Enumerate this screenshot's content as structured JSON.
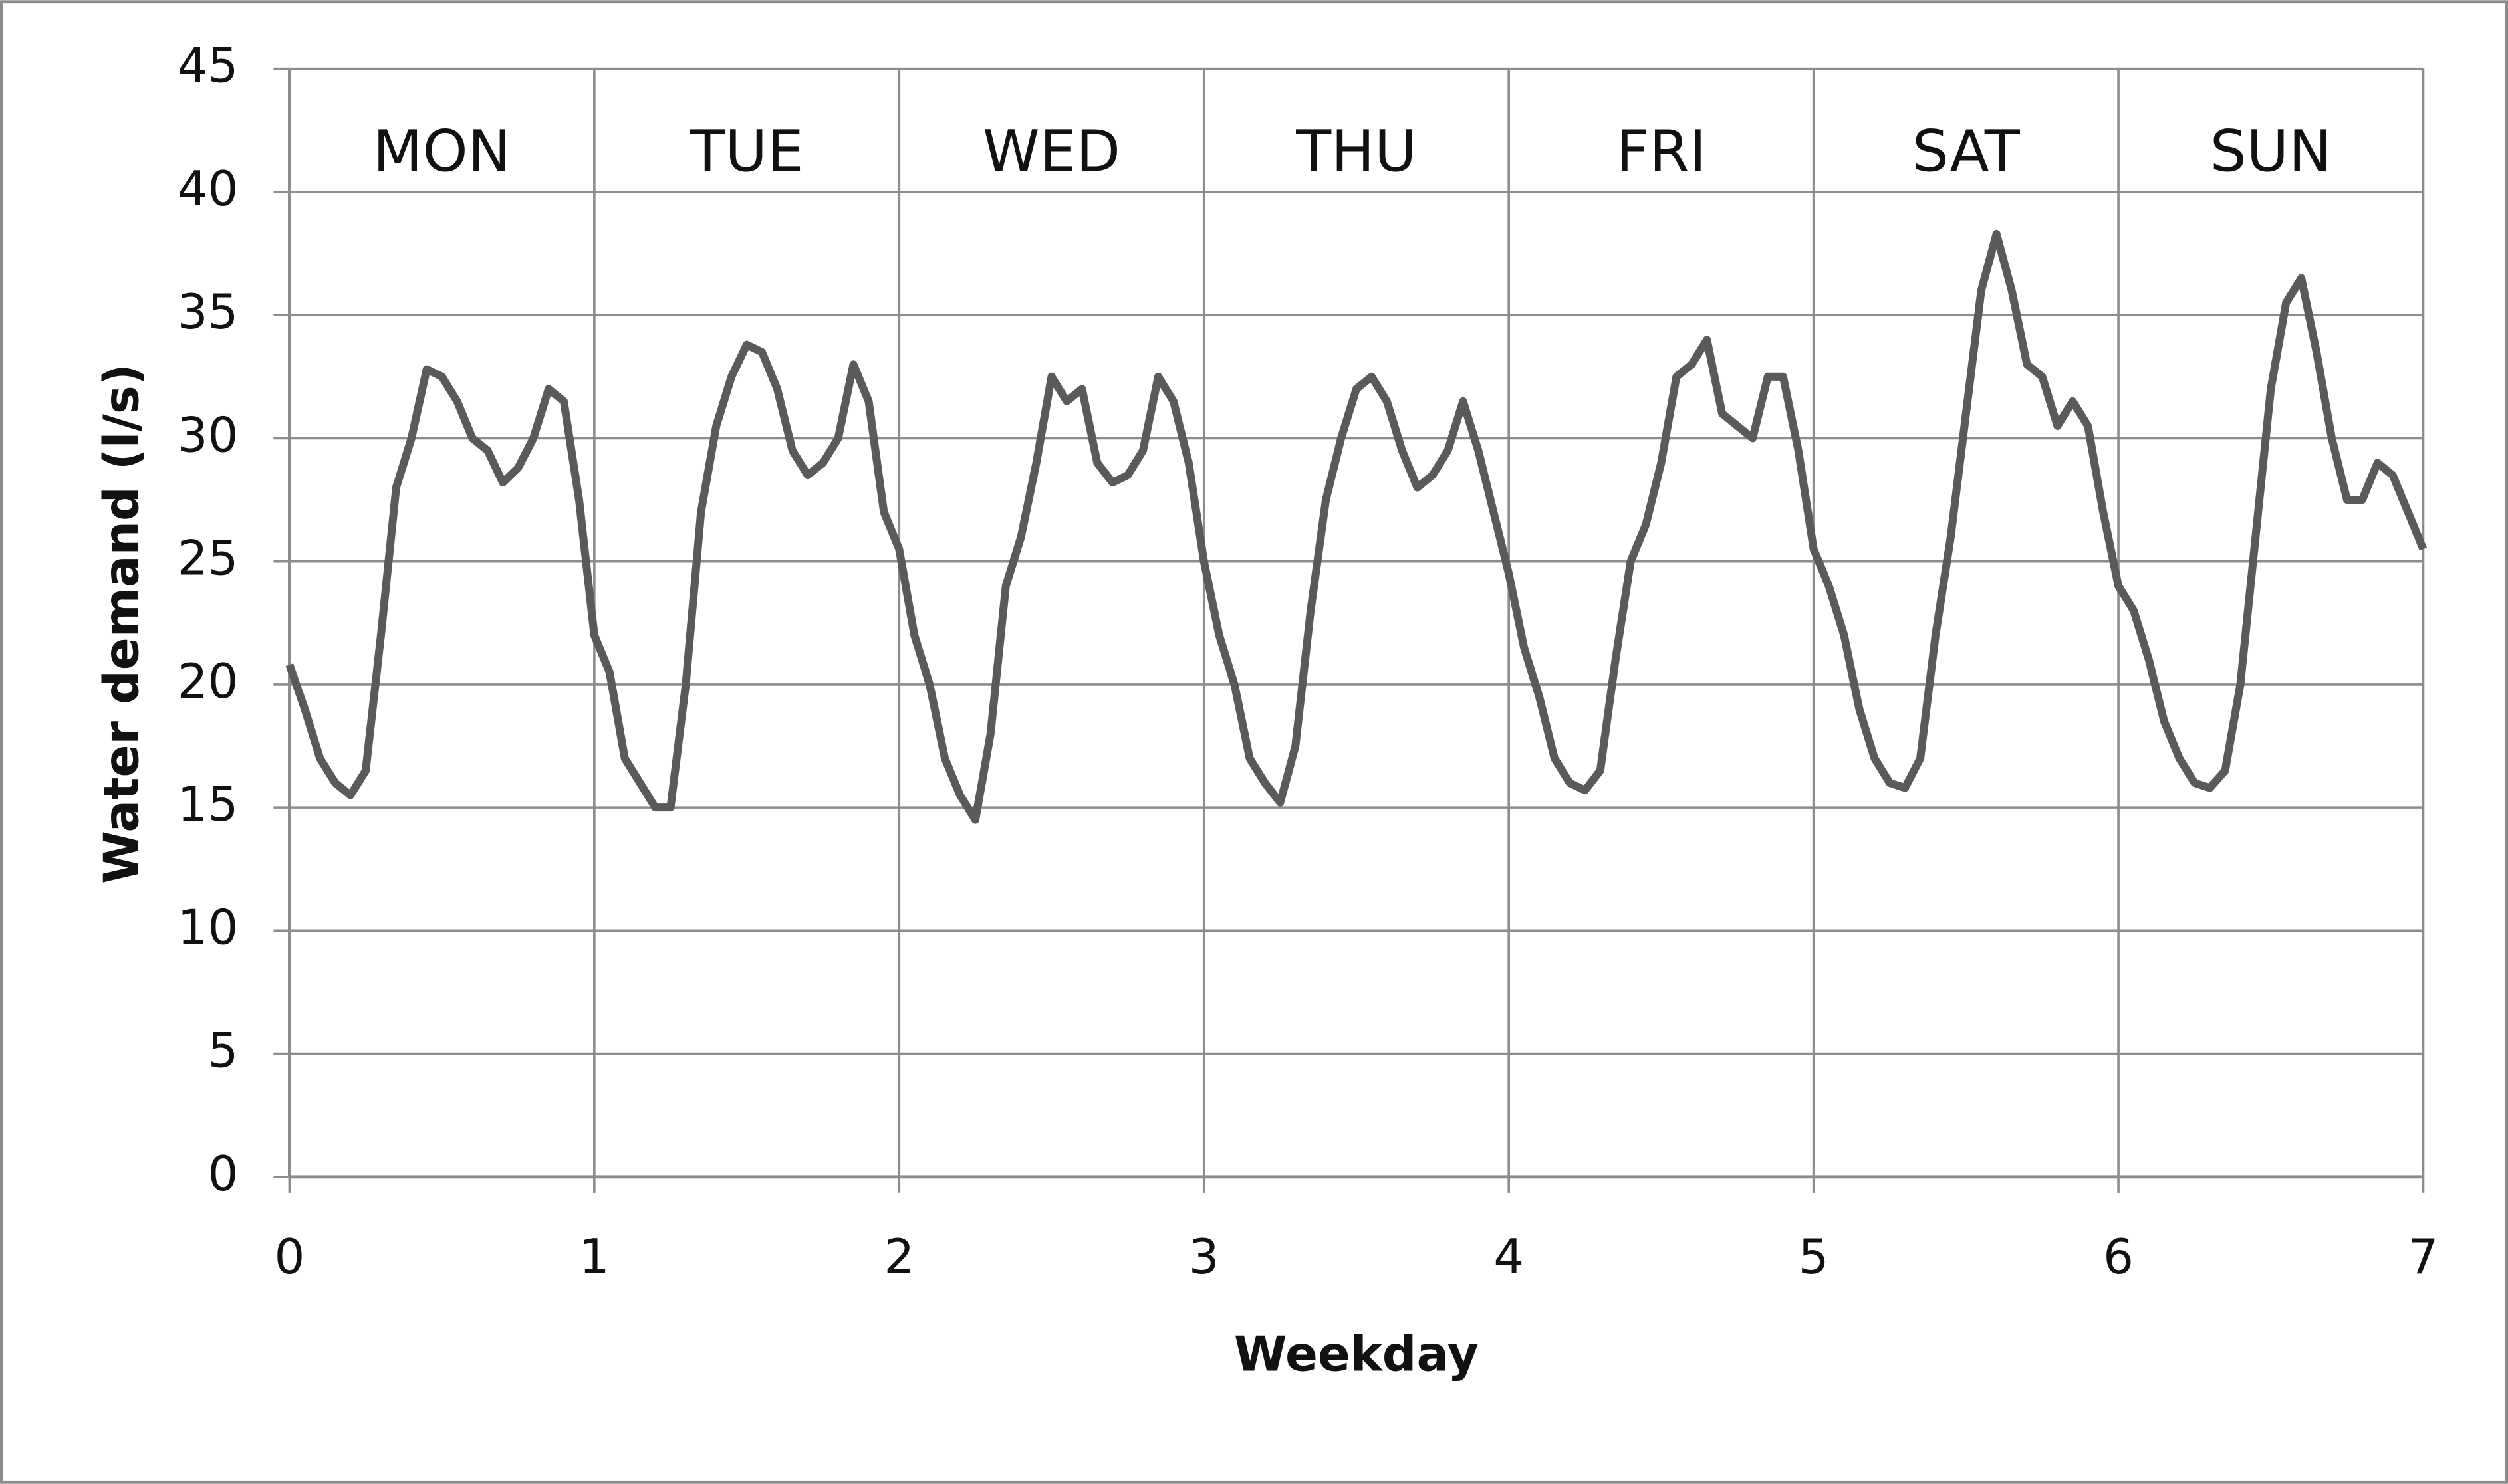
{
  "chart_data": {
    "type": "line",
    "x_label": "Weekday",
    "y_label": "Water demand (l/s)",
    "annotations": [
      "MON",
      "TUE",
      "WED",
      "THU",
      "FRI",
      "SAT",
      "SUN"
    ],
    "xlim": [
      0,
      7
    ],
    "xticks": [
      0,
      1,
      2,
      3,
      4,
      5,
      6,
      7
    ],
    "ylim": [
      0,
      45
    ],
    "yticks": [
      0,
      5,
      10,
      15,
      20,
      25,
      30,
      35,
      40,
      45
    ],
    "grid": true,
    "x": [
      0,
      0.05,
      0.1,
      0.15,
      0.2,
      0.25,
      0.3,
      0.35,
      0.4,
      0.45,
      0.5,
      0.55,
      0.6,
      0.65,
      0.7,
      0.75,
      0.8,
      0.85,
      0.9,
      0.95,
      1,
      1.05,
      1.1,
      1.15,
      1.2,
      1.25,
      1.3,
      1.35,
      1.4,
      1.45,
      1.5,
      1.55,
      1.6,
      1.65,
      1.7,
      1.75,
      1.8,
      1.85,
      1.9,
      1.95,
      2,
      2.05,
      2.1,
      2.15,
      2.2,
      2.25,
      2.3,
      2.35,
      2.4,
      2.45,
      2.5,
      2.55,
      2.6,
      2.65,
      2.7,
      2.75,
      2.8,
      2.85,
      2.9,
      2.95,
      3,
      3.05,
      3.1,
      3.15,
      3.2,
      3.25,
      3.3,
      3.35,
      3.4,
      3.45,
      3.5,
      3.55,
      3.6,
      3.65,
      3.7,
      3.75,
      3.8,
      3.85,
      3.9,
      3.95,
      4,
      4.05,
      4.1,
      4.15,
      4.2,
      4.25,
      4.3,
      4.35,
      4.4,
      4.45,
      4.5,
      4.55,
      4.6,
      4.65,
      4.7,
      4.75,
      4.8,
      4.85,
      4.9,
      4.95,
      5,
      5.05,
      5.1,
      5.15,
      5.2,
      5.25,
      5.3,
      5.35,
      5.4,
      5.45,
      5.5,
      5.55,
      5.6,
      5.65,
      5.7,
      5.75,
      5.8,
      5.85,
      5.9,
      5.95,
      6,
      6.05,
      6.1,
      6.15,
      6.2,
      6.25,
      6.3,
      6.35,
      6.4,
      6.45,
      6.5,
      6.55,
      6.6,
      6.65,
      6.7,
      6.75,
      6.8,
      6.85,
      6.9,
      6.95,
      7
    ],
    "series": [
      {
        "color": "#5a5a5a",
        "values": [
          20.8,
          19,
          17,
          16,
          15.5,
          16.5,
          22,
          28,
          30,
          32.8,
          32.5,
          31.5,
          30,
          29.5,
          28.2,
          28.8,
          30,
          32,
          31.5,
          27.5,
          22,
          20.5,
          17,
          16,
          15,
          15,
          20,
          27,
          30.5,
          32.5,
          33.8,
          33.5,
          32,
          29.5,
          28.5,
          29,
          30,
          33,
          31.5,
          27,
          25.5,
          22,
          20,
          17,
          15.5,
          14.5,
          18,
          24,
          26,
          29,
          32.5,
          31.5,
          32,
          29,
          28.2,
          28.5,
          29.5,
          32.5,
          31.5,
          29,
          25,
          22,
          20,
          17,
          16,
          15.2,
          17.5,
          23,
          27.5,
          30,
          32,
          32.5,
          31.5,
          29.5,
          28,
          28.5,
          29.5,
          31.5,
          29.5,
          27,
          24.5,
          21.5,
          19.5,
          17,
          16,
          15.7,
          16.5,
          21,
          25,
          26.5,
          29,
          32.5,
          33,
          34,
          31,
          30.5,
          30,
          32.5,
          32.5,
          29.5,
          25.5,
          24,
          22,
          19,
          17,
          16,
          15.8,
          17,
          22,
          26,
          31,
          36,
          38.3,
          36,
          33,
          32.5,
          30.5,
          31.5,
          30.5,
          27,
          24,
          23,
          21,
          18.5,
          17,
          16,
          15.8,
          16.5,
          20,
          26,
          32,
          35.5,
          36.5,
          33.5,
          30,
          27.5,
          27.5,
          29,
          28.5,
          27,
          25.5
        ]
      }
    ]
  }
}
